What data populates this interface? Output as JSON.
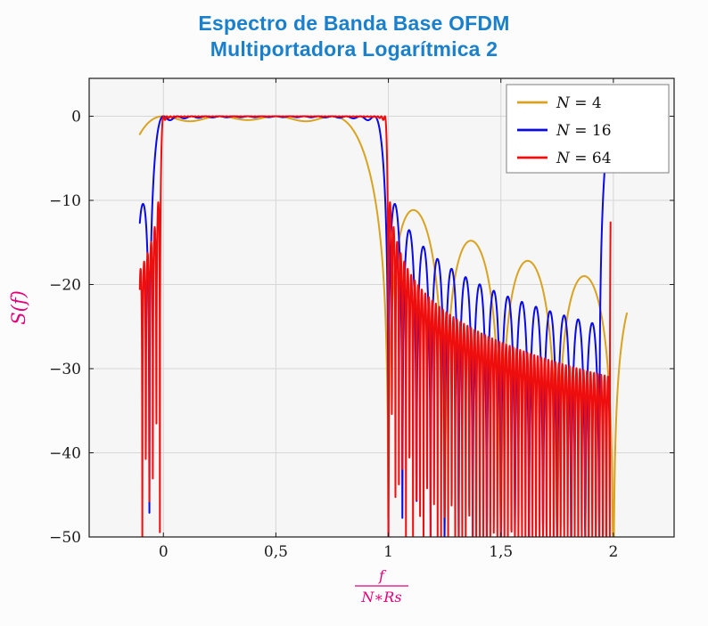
{
  "page": {
    "background": "#fcfcfc"
  },
  "title": {
    "line1": "Espectro de Banda Base OFDM",
    "line2": "Multiportadora Logarítmica 2",
    "color": "#1a80cc"
  },
  "chart_data": {
    "type": "line",
    "title": "Espectro de Banda Base OFDM Multiportadora Logarítmica 2",
    "ylabel": "S(f)",
    "xlabel": {
      "numerator": "f",
      "denominator": "N∗Rs"
    },
    "label_color": "#e30079",
    "xlim": [
      -0.33,
      2.27
    ],
    "ylim": [
      -50,
      4.5
    ],
    "x_ticks": [
      {
        "v": 0,
        "label": "0"
      },
      {
        "v": 0.5,
        "label": "0,5"
      },
      {
        "v": 1,
        "label": "1"
      },
      {
        "v": 1.5,
        "label": "1,5"
      },
      {
        "v": 2,
        "label": "2"
      }
    ],
    "y_ticks": [
      {
        "v": 0,
        "label": "0"
      },
      {
        "v": -10,
        "label": "−10"
      },
      {
        "v": -20,
        "label": "−20"
      },
      {
        "v": -30,
        "label": "−30"
      },
      {
        "v": -40,
        "label": "−40"
      },
      {
        "v": -50,
        "label": "−50"
      }
    ],
    "grid": true,
    "grid_color": "#d6d6d6",
    "plot_background": "#f5f6f5",
    "axis_color": "#1a1a1a",
    "tick_label_color": "#1a1a1a",
    "legend": {
      "position": "top-right",
      "entries": [
        {
          "label": "N = 4",
          "color": "#d9a321"
        },
        {
          "label": "N = 16",
          "color": "#0a0ae8"
        },
        {
          "label": "N = 64",
          "color": "#ee0e0e"
        }
      ]
    },
    "series": [
      {
        "label": "N = 4",
        "subcarriers": 4,
        "color": "#d9a321",
        "x_start": -0.105,
        "x_end": 2.06,
        "samples": 900,
        "nyquist_replica": false
      },
      {
        "label": "N = 16",
        "subcarriers": 16,
        "color": "#0a0ae8",
        "x_start": -0.105,
        "x_end": 1.962,
        "samples": 1500,
        "nyquist_replica": true
      },
      {
        "label": "N = 64",
        "subcarriers": 64,
        "color": "#ee0e0e",
        "x_start": -0.105,
        "x_end": 1.9875,
        "samples": 2600,
        "nyquist_replica": true
      }
    ],
    "model": "S(x)=10*log10(sum_{k=0..N-1} sinc^2(N*x-k) [+ sinc^2(N*(x-2)) main lobe if replica]), sinc(t)=sin(pi t)/(pi t); flat band 0..1 at 0 dB, sidelobes clipped at -50 dB"
  }
}
